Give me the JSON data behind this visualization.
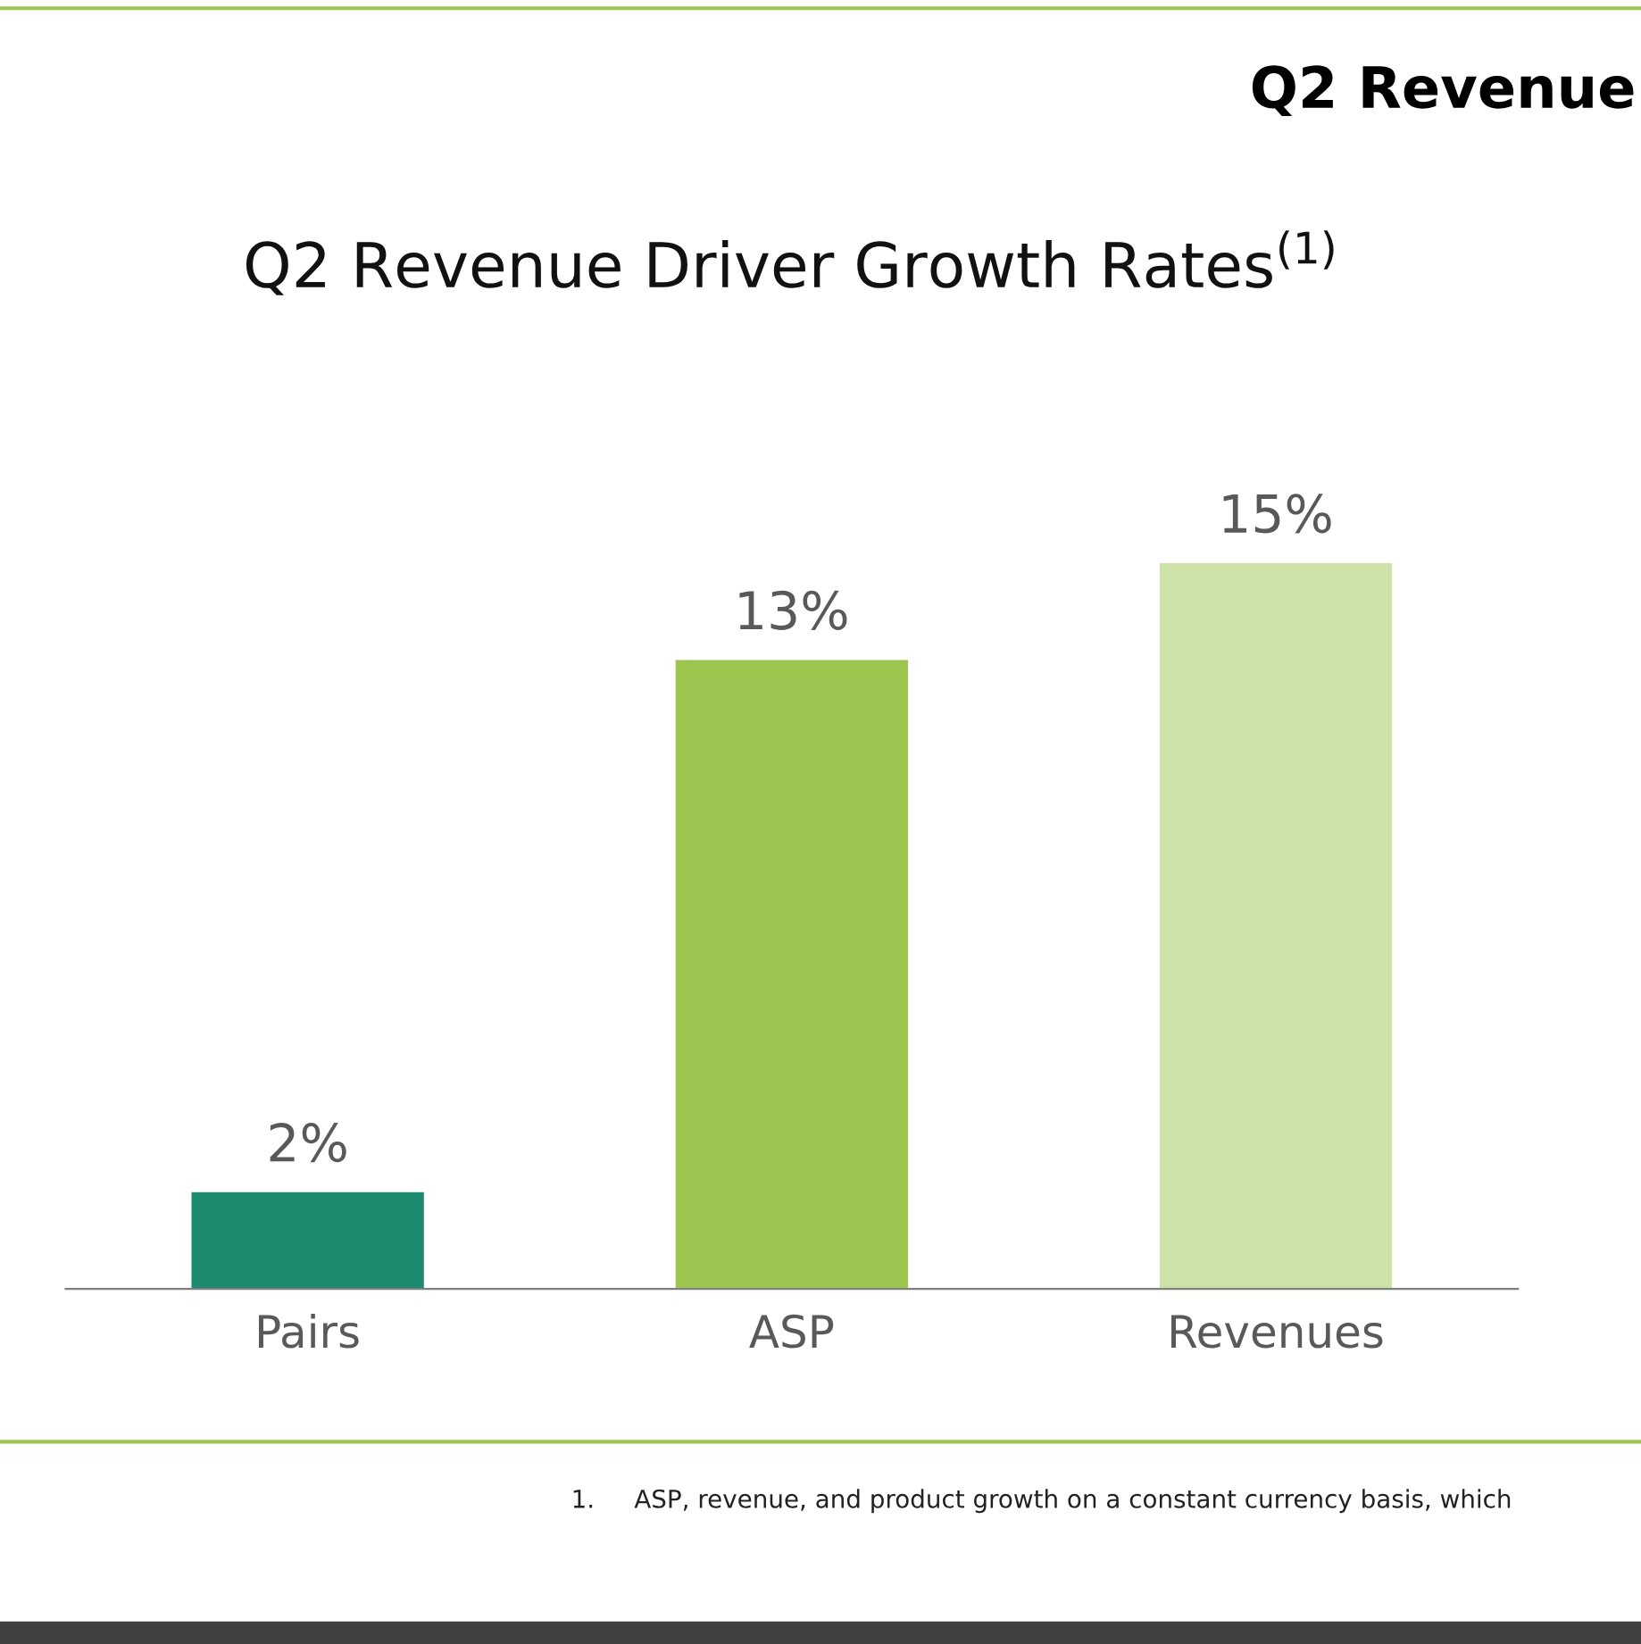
{
  "chart_data": {
    "type": "bar",
    "title": "Q2 Revenue Driver Growth Rates$^{(1)}$",
    "categories": [
      "Pairs",
      "ASP",
      "Revenues"
    ],
    "values": [
      2,
      13,
      15
    ],
    "colors": [
      "#1b8a6f",
      "#9cc44f",
      "#cde2a9"
    ],
    "value_labels": [
      "2%",
      "13%",
      "15%"
    ],
    "annotations": [
      "Q2 Revenue",
      "1.     ASP, revenue, and product growth on a constant currency basis, which"
    ],
    "grid": false,
    "legend": false
  }
}
